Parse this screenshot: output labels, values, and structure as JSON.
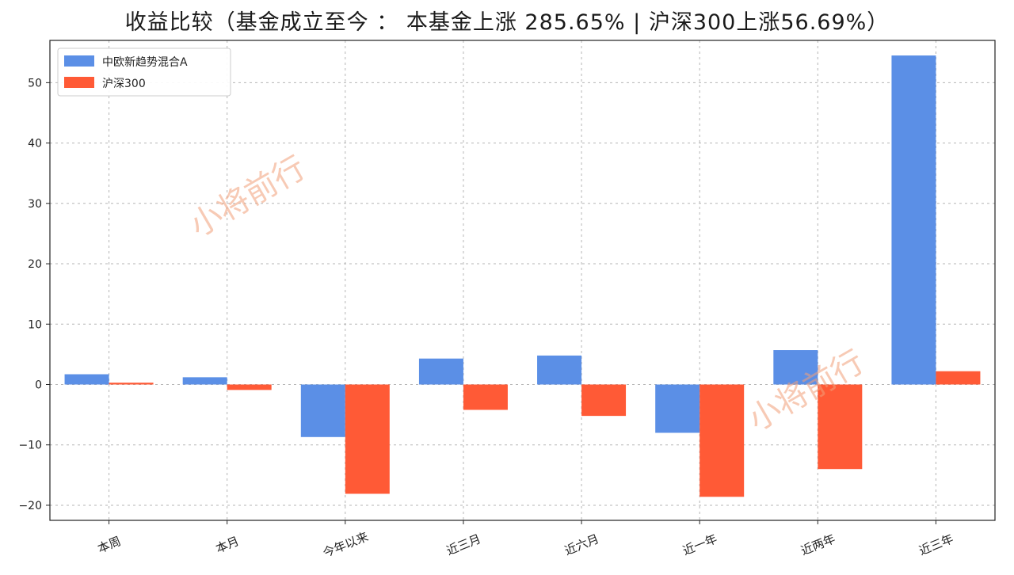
{
  "chart_data": {
    "type": "bar",
    "title": "收益比较（基金成立至今 ： 本基金上涨 285.65% | 沪深300上涨56.69%）",
    "categories": [
      "本周",
      "本月",
      "今年以来",
      "近三月",
      "近六月",
      "近一年",
      "近两年",
      "近三年"
    ],
    "series": [
      {
        "name": "中欧新趋势混合A",
        "color": "#5b8fe6",
        "values": [
          1.7,
          1.2,
          -8.7,
          4.3,
          4.8,
          -8.0,
          5.7,
          54.5
        ]
      },
      {
        "name": "沪深300",
        "color": "#ff5a36",
        "values": [
          0.3,
          -0.9,
          -18.1,
          -4.2,
          -5.2,
          -18.6,
          -14.0,
          2.2
        ]
      }
    ],
    "ylim": [
      -22.5,
      57
    ],
    "yticks": [
      -20,
      -10,
      0,
      10,
      20,
      30,
      40,
      50
    ],
    "ytick_labels": [
      "−20",
      "−10",
      "0",
      "10",
      "20",
      "30",
      "40",
      "50"
    ],
    "grid": true,
    "legend_position": "top-left",
    "watermark": "小将前行",
    "xlabel": "",
    "ylabel": ""
  }
}
